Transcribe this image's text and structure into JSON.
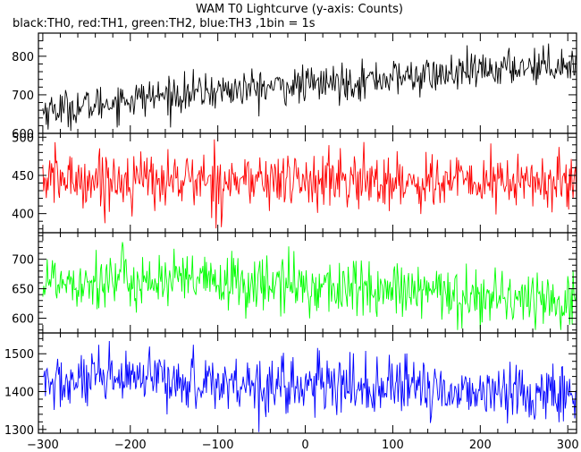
{
  "header": {
    "title": "WAM T0 Lightcurve (y-axis: Counts)",
    "subtitle": "black:TH0, red:TH1, green:TH2, blue:TH3 ,1bin = 1s"
  },
  "chart_data": [
    {
      "type": "line",
      "series_label": "TH0",
      "color": "#000000",
      "xlim": [
        -305,
        310
      ],
      "ylim": [
        600,
        860
      ],
      "yticks": [
        600,
        700,
        800
      ],
      "xticks": [
        -300,
        -200,
        -100,
        0,
        100,
        200,
        300
      ],
      "trend": [
        [
          -300,
          660
        ],
        [
          -250,
          670
        ],
        [
          -200,
          690
        ],
        [
          -150,
          700
        ],
        [
          -100,
          710
        ],
        [
          -50,
          718
        ],
        [
          0,
          725
        ],
        [
          50,
          735
        ],
        [
          100,
          745
        ],
        [
          150,
          750
        ],
        [
          200,
          760
        ],
        [
          250,
          775
        ],
        [
          300,
          780
        ]
      ],
      "noise": 24,
      "min": 600,
      "max": 855
    },
    {
      "type": "line",
      "series_label": "TH1",
      "color": "#ff0000",
      "xlim": [
        -305,
        310
      ],
      "ylim": [
        375,
        505
      ],
      "yticks": [
        400,
        450,
        500
      ],
      "xticks": [
        -300,
        -200,
        -100,
        0,
        100,
        200,
        300
      ],
      "trend": [
        [
          -300,
          445
        ],
        [
          0,
          443
        ],
        [
          300,
          440
        ]
      ],
      "noise": 19,
      "min": 376,
      "max": 500
    },
    {
      "type": "line",
      "series_label": "TH2",
      "color": "#00ff00",
      "xlim": [
        -305,
        310
      ],
      "ylim": [
        575,
        745
      ],
      "yticks": [
        600,
        650,
        700
      ],
      "xticks": [
        -300,
        -200,
        -100,
        0,
        100,
        200,
        300
      ],
      "trend": [
        [
          -300,
          665
        ],
        [
          -200,
          665
        ],
        [
          -100,
          660
        ],
        [
          0,
          655
        ],
        [
          100,
          645
        ],
        [
          200,
          638
        ],
        [
          300,
          630
        ]
      ],
      "noise": 25,
      "min": 580,
      "max": 742
    },
    {
      "type": "line",
      "series_label": "TH3",
      "color": "#0000ff",
      "xlim": [
        -305,
        310
      ],
      "ylim": [
        1290,
        1555
      ],
      "yticks": [
        1300,
        1400,
        1500
      ],
      "xticks": [
        -300,
        -200,
        -100,
        0,
        100,
        200,
        300
      ],
      "trend": [
        [
          -300,
          1420
        ],
        [
          -200,
          1430
        ],
        [
          -100,
          1425
        ],
        [
          0,
          1415
        ],
        [
          100,
          1410
        ],
        [
          200,
          1400
        ],
        [
          300,
          1395
        ]
      ],
      "noise": 38,
      "min": 1290,
      "max": 1555
    }
  ]
}
